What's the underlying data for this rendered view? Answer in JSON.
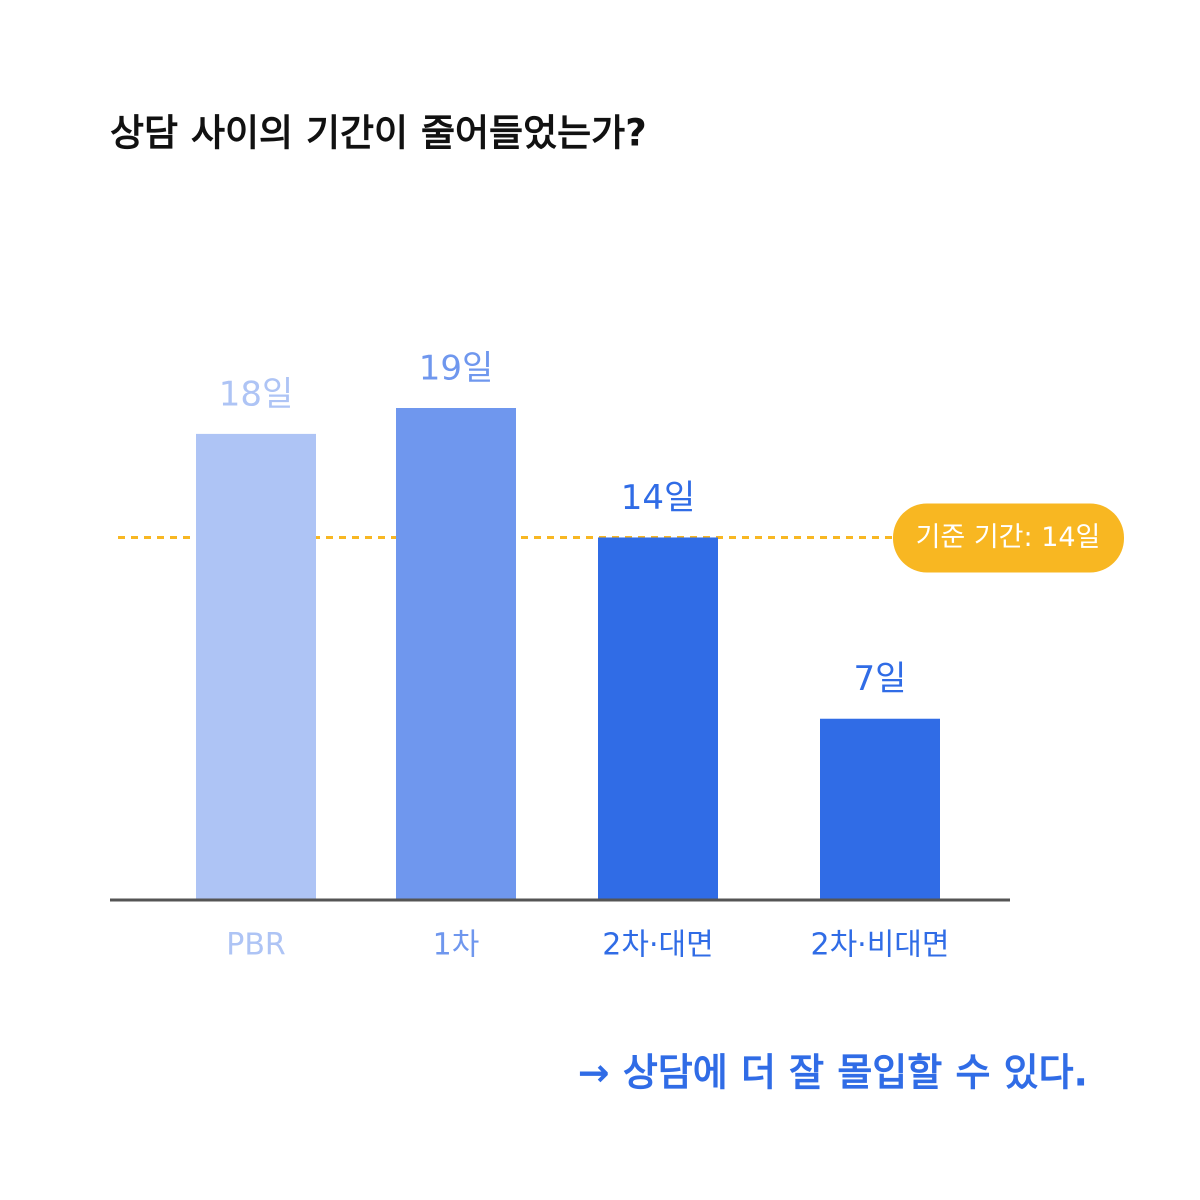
{
  "chart_data": {
    "type": "bar",
    "title": "상담 사이의 기간이 줄어들었는가?",
    "categories": [
      "PBR",
      "1차",
      "2차·대면",
      "2차·비대면"
    ],
    "values": [
      18,
      19,
      14,
      7
    ],
    "value_labels": [
      "18일",
      "19일",
      "14일",
      "7일"
    ],
    "colors": [
      "#aec4f5",
      "#6f97ee",
      "#306ce6",
      "#306ce6"
    ],
    "reference_line": {
      "value": 14,
      "label": "기준 기간: 14일",
      "color": "#f8b722"
    },
    "footnote": "→ 상담에 더 잘 몰입할 수 있다.",
    "footnote_color": "#306ce6"
  }
}
